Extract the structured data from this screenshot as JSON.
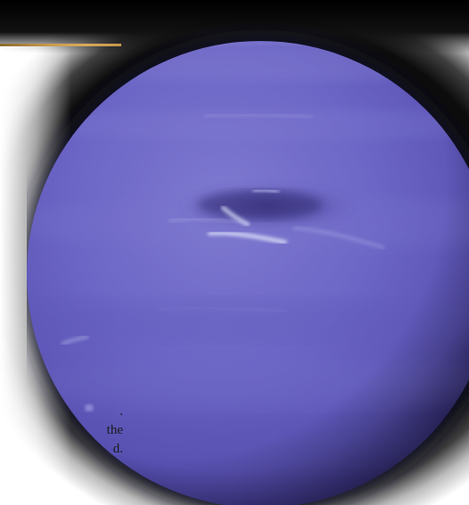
{
  "caption": {
    "line1": ".",
    "line2": "the",
    "line3": "d."
  },
  "colors": {
    "planet_base": "#6a64c4",
    "planet_dark": "#2a2468",
    "planet_light": "#8a86d6",
    "cloud_white": "#e6ecff",
    "gold_rule": "#c99a4c"
  }
}
